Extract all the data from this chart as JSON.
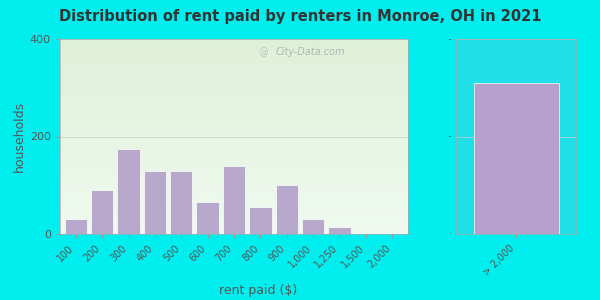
{
  "title": "Distribution of rent paid by renters in Monroe, OH in 2021",
  "xlabel": "rent paid ($)",
  "ylabel": "households",
  "background_outer": "#00eeee",
  "background_inner_top": "#dff0d8",
  "background_inner_bottom": "#f0faf0",
  "bar_color": "#b8a8cc",
  "bar_edge_color": "#ffffff",
  "ylim": [
    0,
    400
  ],
  "yticks": [
    0,
    200,
    400
  ],
  "categories": [
    "100",
    "200",
    "300",
    "400",
    "500",
    "600",
    "700",
    "800",
    "900",
    "1,000",
    "1,250",
    "1,500",
    "2,000"
  ],
  "values": [
    30,
    90,
    175,
    130,
    130,
    65,
    140,
    55,
    100,
    30,
    15,
    0,
    0
  ],
  "special_label": "> 2,000",
  "special_value": 310,
  "special_bar_color": "#b8a0cc",
  "watermark": "City-Data.com"
}
